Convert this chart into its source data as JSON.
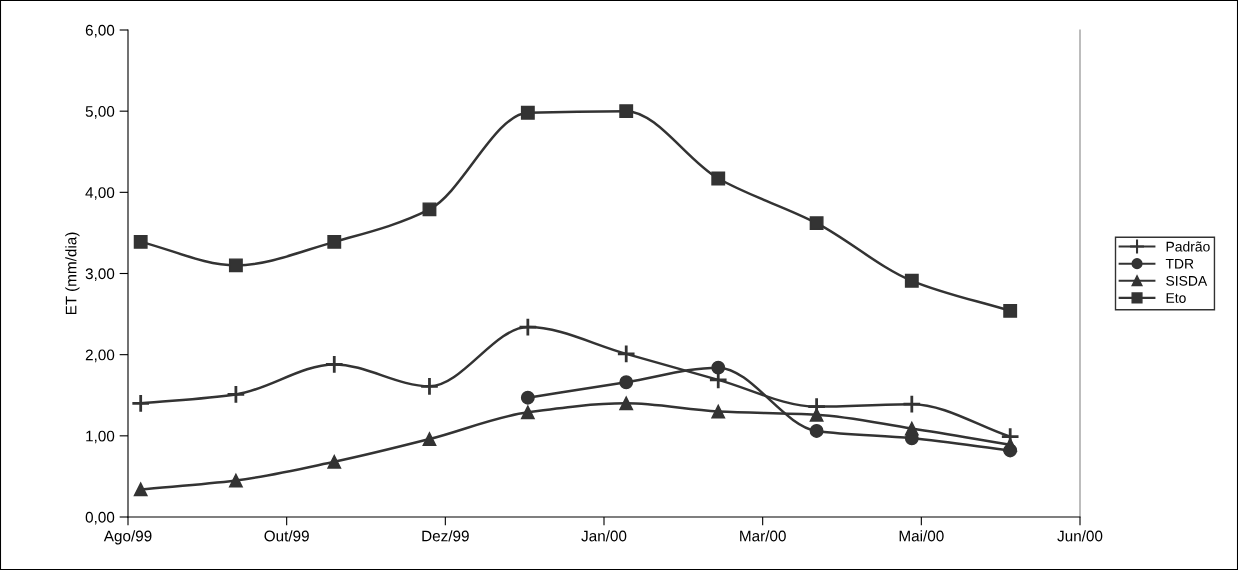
{
  "chart_data": {
    "type": "line",
    "ylabel": "ET (mm/dia)",
    "x": [
      "1999-09-04",
      "1999-10-04",
      "1999-11-04",
      "1999-12-04",
      "2000-01-04",
      "2000-02-04",
      "2000-03-04",
      "2000-04-04",
      "2000-05-04",
      "2000-06-04"
    ],
    "series": [
      {
        "name": "Padrão",
        "color": "#333333",
        "marker": "cross",
        "values": [
          1.4,
          1.51,
          1.88,
          1.61,
          2.34,
          2.01,
          1.69,
          1.36,
          1.39,
          0.99
        ]
      },
      {
        "name": "TDR",
        "color": "#333333",
        "marker": "circle",
        "values": [
          null,
          null,
          null,
          null,
          1.47,
          1.66,
          1.84,
          1.06,
          0.97,
          0.82
        ]
      },
      {
        "name": "SISDA",
        "color": "#333333",
        "marker": "triangle",
        "values": [
          0.34,
          0.45,
          0.68,
          0.96,
          1.29,
          1.4,
          1.3,
          1.26,
          1.09,
          0.89
        ]
      },
      {
        "name": "Eto",
        "color": "#333333",
        "marker": "square",
        "values": [
          3.39,
          3.1,
          3.39,
          3.79,
          4.98,
          5.0,
          4.17,
          3.62,
          2.91,
          2.54
        ]
      }
    ],
    "xlim": [
      "1999-08-31",
      "2000-06-26"
    ],
    "xticks": [
      {
        "value": "1999-08-31",
        "label": "Ago/99"
      },
      {
        "value": "1999-10-20",
        "label": "Out/99"
      },
      {
        "value": "1999-12-09",
        "label": "Dez/99"
      },
      {
        "value": "2000-01-28",
        "label": "Jan/00"
      },
      {
        "value": "2000-03-18",
        "label": "Mar/00"
      },
      {
        "value": "2000-05-07",
        "label": "Mai/00"
      },
      {
        "value": "2000-06-26",
        "label": "Jun/00"
      }
    ],
    "ylim": [
      0,
      6
    ],
    "yticks": [
      {
        "value": 0,
        "label": "0,00"
      },
      {
        "value": 1,
        "label": "1,00"
      },
      {
        "value": 2,
        "label": "2,00"
      },
      {
        "value": 3,
        "label": "3,00"
      },
      {
        "value": 4,
        "label": "4,00"
      },
      {
        "value": 5,
        "label": "5,00"
      },
      {
        "value": 6,
        "label": "6,00"
      }
    ],
    "grid": false,
    "legend": "right",
    "line_style": "solid"
  }
}
